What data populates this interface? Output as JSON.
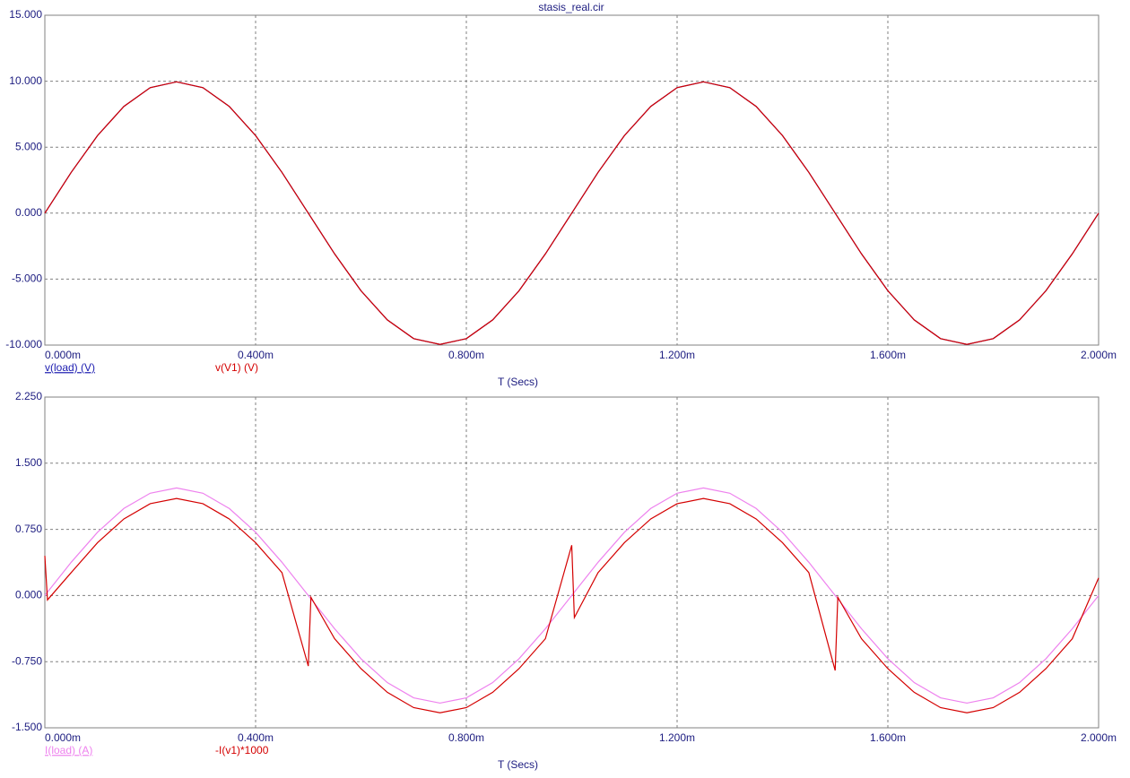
{
  "chart_data": [
    {
      "type": "line",
      "title": "stasis_real.cir",
      "xlabel": "T (Secs)",
      "grid": true,
      "x": [
        0,
        5e-05,
        0.0001,
        0.00015,
        0.0002,
        0.00025,
        0.0003,
        0.00035,
        0.0004,
        0.00045,
        0.0005,
        0.00055,
        0.0006,
        0.00065,
        0.0007,
        0.00075,
        0.0008,
        0.00085,
        0.0009,
        0.00095,
        0.001,
        0.00105,
        0.0011,
        0.00115,
        0.0012,
        0.00125,
        0.0013,
        0.00135,
        0.0014,
        0.00145,
        0.0015,
        0.00155,
        0.0016,
        0.00165,
        0.0017,
        0.00175,
        0.0018,
        0.00185,
        0.0019,
        0.00195,
        0.002
      ],
      "xlim": [
        0,
        0.002
      ],
      "xticks": [
        {
          "value": 0,
          "label": "0.000m"
        },
        {
          "value": 0.0004,
          "label": "0.400m"
        },
        {
          "value": 0.0008,
          "label": "0.800m"
        },
        {
          "value": 0.0012,
          "label": "1.200m"
        },
        {
          "value": 0.0016,
          "label": "1.600m"
        },
        {
          "value": 0.002,
          "label": "2.000m"
        }
      ],
      "ylim": [
        -10,
        15
      ],
      "yticks": [
        {
          "value": -10,
          "label": "-10.000"
        },
        {
          "value": -5,
          "label": "-5.000"
        },
        {
          "value": 0,
          "label": "0.000"
        },
        {
          "value": 5,
          "label": "5.000"
        },
        {
          "value": 10,
          "label": "10.000"
        },
        {
          "value": 15,
          "label": "15.000"
        }
      ],
      "series": [
        {
          "name": "v(load) (V)",
          "color": "#1c1cb0",
          "values": [
            0,
            3.09,
            5.88,
            8.09,
            9.51,
            9.95,
            9.51,
            8.09,
            5.88,
            3.09,
            0,
            -3.09,
            -5.88,
            -8.09,
            -9.51,
            -9.95,
            -9.51,
            -8.09,
            -5.88,
            -3.09,
            0,
            3.09,
            5.88,
            8.09,
            9.51,
            9.95,
            9.51,
            8.09,
            5.88,
            3.09,
            0,
            -3.09,
            -5.88,
            -8.09,
            -9.51,
            -9.95,
            -9.51,
            -8.09,
            -5.88,
            -3.09,
            0
          ]
        },
        {
          "name": "v(V1) (V)",
          "color": "#d40000",
          "values": [
            0,
            3.09,
            5.88,
            8.09,
            9.51,
            9.95,
            9.51,
            8.09,
            5.88,
            3.09,
            0,
            -3.09,
            -5.88,
            -8.09,
            -9.51,
            -9.95,
            -9.51,
            -8.09,
            -5.88,
            -3.09,
            0,
            3.09,
            5.88,
            8.09,
            9.51,
            9.95,
            9.51,
            8.09,
            5.88,
            3.09,
            0,
            -3.09,
            -5.88,
            -8.09,
            -9.51,
            -9.95,
            -9.51,
            -8.09,
            -5.88,
            -3.09,
            0
          ]
        }
      ]
    },
    {
      "type": "line",
      "xlabel": "T (Secs)",
      "grid": true,
      "x": [
        0,
        5e-06,
        5e-05,
        0.0001,
        0.00015,
        0.0002,
        0.00025,
        0.0003,
        0.00035,
        0.0004,
        0.00045,
        0.0005,
        0.000505,
        0.00055,
        0.0006,
        0.00065,
        0.0007,
        0.00075,
        0.0008,
        0.00085,
        0.0009,
        0.00095,
        0.001,
        0.001005,
        0.00105,
        0.0011,
        0.00115,
        0.0012,
        0.00125,
        0.0013,
        0.00135,
        0.0014,
        0.00145,
        0.0015,
        0.001505,
        0.00155,
        0.0016,
        0.00165,
        0.0017,
        0.00175,
        0.0018,
        0.00185,
        0.0019,
        0.00195,
        0.002
      ],
      "xlim": [
        0,
        0.002
      ],
      "xticks": [
        {
          "value": 0,
          "label": "0.000m"
        },
        {
          "value": 0.0004,
          "label": "0.400m"
        },
        {
          "value": 0.0008,
          "label": "0.800m"
        },
        {
          "value": 0.0012,
          "label": "1.200m"
        },
        {
          "value": 0.0016,
          "label": "1.600m"
        },
        {
          "value": 0.002,
          "label": "2.000m"
        }
      ],
      "ylim": [
        -1.5,
        2.25
      ],
      "yticks": [
        {
          "value": -1.5,
          "label": "-1.500"
        },
        {
          "value": -0.75,
          "label": "-0.750"
        },
        {
          "value": 0,
          "label": "0.000"
        },
        {
          "value": 0.75,
          "label": "0.750"
        },
        {
          "value": 1.5,
          "label": "1.500"
        },
        {
          "value": 2.25,
          "label": "2.250"
        }
      ],
      "series": [
        {
          "name": "I(load) (A)",
          "color": "#ee82ee",
          "values": [
            0,
            0.038,
            0.377,
            0.717,
            0.987,
            1.16,
            1.22,
            1.16,
            0.987,
            0.717,
            0.377,
            0,
            -0.038,
            -0.377,
            -0.717,
            -0.987,
            -1.16,
            -1.22,
            -1.16,
            -0.987,
            -0.717,
            -0.377,
            0,
            0.038,
            0.377,
            0.717,
            0.987,
            1.16,
            1.22,
            1.16,
            0.987,
            0.717,
            0.377,
            0,
            -0.038,
            -0.377,
            -0.717,
            -0.987,
            -1.16,
            -1.22,
            -1.16,
            -0.987,
            -0.717,
            -0.377,
            0
          ]
        },
        {
          "name": "-I(v1)*1000",
          "color": "#d40000",
          "values": [
            0.45,
            -0.05,
            0.26,
            0.599,
            0.868,
            1.041,
            1.1,
            1.041,
            0.868,
            0.599,
            0.26,
            -0.8,
            -0.02,
            -0.49,
            -0.829,
            -1.098,
            -1.271,
            -1.33,
            -1.271,
            -1.098,
            -0.829,
            -0.49,
            0.57,
            -0.25,
            0.26,
            0.599,
            0.868,
            1.041,
            1.1,
            1.041,
            0.868,
            0.599,
            0.26,
            -0.85,
            -0.02,
            -0.49,
            -0.829,
            -1.098,
            -1.271,
            -1.33,
            -1.271,
            -1.098,
            -0.829,
            -0.49,
            0.2
          ]
        }
      ]
    }
  ]
}
